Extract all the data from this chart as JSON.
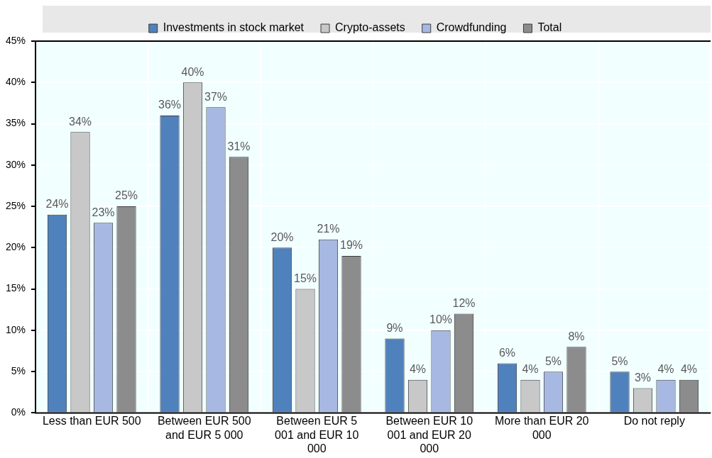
{
  "chart_data": {
    "type": "bar",
    "categories": [
      "Less than EUR 500",
      "Between EUR 500 and EUR 5 000",
      "Between EUR 5 001 and EUR 10 000",
      "Between EUR 10 001 and EUR 20 000",
      "More than EUR 20 000",
      "Do not reply"
    ],
    "series": [
      {
        "name": "Investments in stock market",
        "color": "#4f81bd",
        "values": [
          24,
          36,
          20,
          9,
          6,
          5
        ],
        "value_labels": [
          "24%",
          "36%",
          "20%",
          "9%",
          "6%",
          "5%"
        ]
      },
      {
        "name": "Crypto-assets",
        "color": "#c8c8c8",
        "values": [
          34,
          40,
          15,
          4,
          4,
          3
        ],
        "value_labels": [
          "34%",
          "40%",
          "15%",
          "4%",
          "4%",
          "3%"
        ]
      },
      {
        "name": "Crowdfunding",
        "color": "#a7b8e2",
        "values": [
          23,
          37,
          21,
          10,
          5,
          4
        ],
        "value_labels": [
          "23%",
          "37%",
          "21%",
          "10%",
          "5%",
          "4%"
        ]
      },
      {
        "name": "Total",
        "color": "#8c8c8c",
        "values": [
          25,
          31,
          19,
          12,
          8,
          4
        ],
        "value_labels": [
          "25%",
          "31%",
          "19%",
          "12%",
          "8%",
          "4%"
        ]
      }
    ],
    "ylim": [
      0,
      45
    ],
    "yticks": [
      {
        "value": 0,
        "label": "0%"
      },
      {
        "value": 5,
        "label": "5%"
      },
      {
        "value": 10,
        "label": "10%"
      },
      {
        "value": 15,
        "label": "15%"
      },
      {
        "value": 20,
        "label": "20%"
      },
      {
        "value": 25,
        "label": "25%"
      },
      {
        "value": 30,
        "label": "30%"
      },
      {
        "value": 35,
        "label": "35%"
      },
      {
        "value": 40,
        "label": "40%"
      },
      {
        "value": 45,
        "label": "45%"
      }
    ],
    "grid": true,
    "legend": "top"
  }
}
